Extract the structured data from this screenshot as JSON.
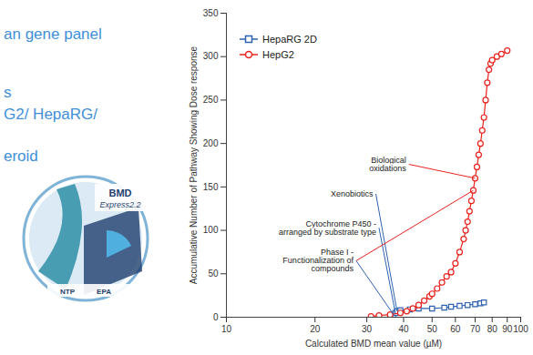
{
  "slide_text": [
    "an gene panel",
    "s",
    "G2/ HepaRG/",
    "eroid"
  ],
  "logo": {
    "title": "BMD",
    "subtitle": "Express2.2",
    "footer": [
      "NTP",
      "EPA"
    ]
  },
  "chart_data": {
    "type": "line",
    "xlabel": "Calculated BMD mean value (µM)",
    "ylabel": "Accumulative Number of Pathway Showing Dose response",
    "log": "x",
    "xlim": [
      10,
      100
    ],
    "xticks": [
      10,
      20,
      30,
      40,
      50,
      60,
      70,
      80,
      90,
      100
    ],
    "ylim": [
      0,
      350
    ],
    "yticks": [
      0,
      50,
      100,
      150,
      200,
      250,
      300,
      350
    ],
    "legend": "top-left",
    "series": [
      {
        "name": "HepaRG 2D",
        "color": "#2f62b0",
        "marker": "square",
        "x": [
          36,
          37,
          37.5,
          38,
          39,
          42,
          45,
          50,
          55,
          58,
          62,
          66,
          70,
          73,
          75
        ],
        "values": [
          1,
          3,
          5,
          7,
          8,
          9,
          10,
          10,
          11,
          12,
          13,
          14,
          15,
          16,
          17
        ]
      },
      {
        "name": "HepG2",
        "color": "#e8231e",
        "marker": "circle",
        "x": [
          31,
          33,
          36,
          39,
          41,
          43,
          45,
          47,
          49,
          50,
          52,
          54,
          56,
          58,
          60,
          62,
          64,
          65,
          66,
          67,
          68,
          69,
          70,
          71,
          72,
          73,
          74,
          75,
          76,
          77,
          78,
          79,
          80,
          83,
          86,
          90
        ],
        "values": [
          1,
          2,
          3,
          5,
          7,
          10,
          14,
          19,
          24,
          27,
          33,
          40,
          47,
          52,
          62,
          75,
          90,
          100,
          110,
          122,
          134,
          146,
          160,
          173,
          187,
          200,
          215,
          230,
          250,
          270,
          285,
          292,
          296,
          300,
          303,
          307
        ]
      }
    ],
    "annotations": [
      {
        "text": "Biological\noxidations",
        "x": 41.7,
        "y": 176,
        "points_to": [
          {
            "series": "HepG2",
            "x": 70,
            "y": 160
          }
        ]
      },
      {
        "text": "Xenobiotics",
        "x": 32.2,
        "y": 142,
        "points_to": [
          {
            "series": "HepaRG 2D",
            "x": 38,
            "y": 7
          }
        ]
      },
      {
        "text": "Cytochrome P450 -\narranged by substrate type",
        "x": 33,
        "y": 103,
        "points_to": [
          {
            "series": "HepaRG 2D",
            "x": 37.5,
            "y": 5
          }
        ]
      },
      {
        "text": "Phase I -\nFunctionalization of\ncompounds",
        "x": 27.6,
        "y": 65,
        "points_to": [
          {
            "series": "HepG2",
            "x": 69,
            "y": 146
          },
          {
            "series": "HepaRG 2D",
            "x": 37,
            "y": 3
          }
        ]
      }
    ]
  }
}
